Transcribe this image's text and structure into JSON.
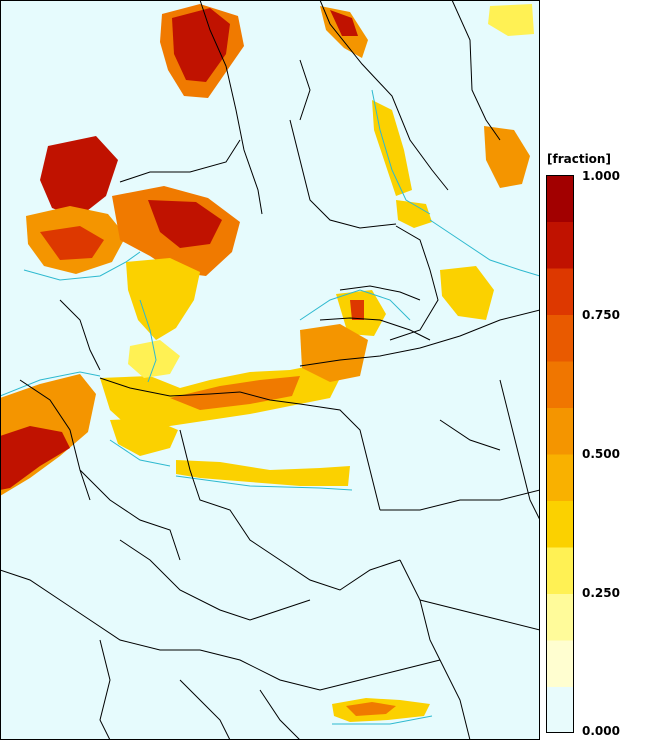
{
  "legend": {
    "title": "[fraction]",
    "ticks": [
      "1.000",
      "0.750",
      "0.500",
      "0.250",
      "0.000"
    ],
    "bands": [
      "#e8fbfc",
      "#fffed0",
      "#fffb9a",
      "#fff154",
      "#fbd100",
      "#f9b100",
      "#f49500",
      "#f07600",
      "#e95a00",
      "#dd3800",
      "#c01200",
      "#a20000"
    ]
  },
  "map": {
    "background": "#e6fbfd",
    "border_color": "#000000",
    "coast_color": "#2eb9cf",
    "colors": {
      "low": "#fff7a8",
      "mid": "#fbc400",
      "high": "#f07a00",
      "vhigh": "#d62a00",
      "max": "#b30000"
    }
  }
}
